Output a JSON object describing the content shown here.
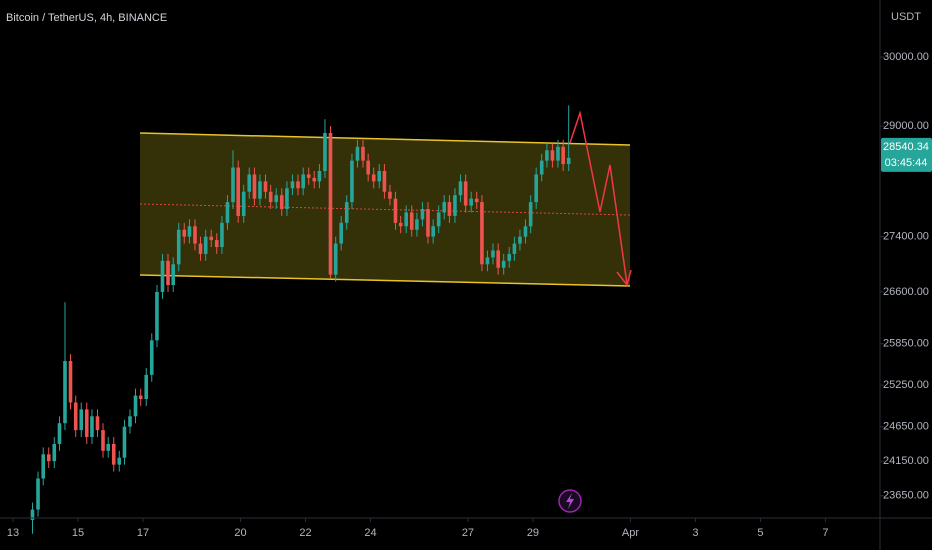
{
  "chart_data": {
    "type": "candlestick",
    "title": "Bitcoin / TetherUS, 4h, BINANCE",
    "y_axis_unit": "USDT",
    "up_color": "#26a69a",
    "down_color": "#ef5350",
    "grid": false,
    "xlim": [
      12.6,
      39.68
    ],
    "ylim": [
      23328,
      30825
    ],
    "xticks": [
      13,
      15,
      17,
      20,
      22,
      24,
      27,
      29,
      {
        "value": 32,
        "label": "Apr"
      },
      {
        "value": 34,
        "label": "3"
      },
      {
        "value": 36,
        "label": "5"
      },
      {
        "value": 38,
        "label": "7"
      }
    ],
    "yticks": [
      {
        "value": 30000,
        "label": "30000.00"
      },
      {
        "value": 29000,
        "label": "29000.00"
      },
      {
        "value": 27400,
        "label": "27400.00"
      },
      {
        "value": 26600,
        "label": "26600.00"
      },
      {
        "value": 25850,
        "label": "25850.00"
      },
      {
        "value": 25250,
        "label": "25250.00"
      },
      {
        "value": 24650,
        "label": "24650.00"
      },
      {
        "value": 24150,
        "label": "24150.00"
      },
      {
        "value": 23650,
        "label": "23650.00"
      }
    ],
    "last_price": 28540.34,
    "countdown": "03:45:44",
    "x": [
      13.6,
      13.77,
      13.93,
      14.1,
      14.27,
      14.43,
      14.6,
      14.77,
      14.93,
      15.1,
      15.27,
      15.43,
      15.6,
      15.77,
      15.93,
      16.1,
      16.27,
      16.43,
      16.6,
      16.77,
      16.93,
      17.1,
      17.27,
      17.43,
      17.6,
      17.77,
      17.93,
      18.1,
      18.27,
      18.43,
      18.6,
      18.77,
      18.93,
      19.1,
      19.27,
      19.43,
      19.6,
      19.77,
      19.93,
      20.1,
      20.27,
      20.43,
      20.6,
      20.77,
      20.93,
      21.1,
      21.27,
      21.43,
      21.6,
      21.77,
      21.93,
      22.1,
      22.27,
      22.43,
      22.6,
      22.77,
      22.93,
      23.1,
      23.27,
      23.43,
      23.6,
      23.77,
      23.93,
      24.1,
      24.27,
      24.43,
      24.6,
      24.77,
      24.93,
      25.1,
      25.27,
      25.43,
      25.6,
      25.77,
      25.93,
      26.1,
      26.27,
      26.43,
      26.6,
      26.77,
      26.93,
      27.1,
      27.27,
      27.43,
      27.6,
      27.77,
      27.93,
      28.1,
      28.27,
      28.43,
      28.6,
      28.77,
      28.93,
      29.1,
      29.27,
      29.43,
      29.6,
      29.77,
      29.93,
      30.1
    ],
    "open": [
      23300,
      23450,
      23900,
      24250,
      24150,
      24400,
      24700,
      25600,
      25000,
      24600,
      24900,
      24500,
      24800,
      24600,
      24300,
      24400,
      24100,
      24200,
      24650,
      24800,
      25100,
      25050,
      25400,
      25900,
      26600,
      27050,
      26700,
      27000,
      27500,
      27400,
      27550,
      27300,
      27150,
      27400,
      27350,
      27250,
      27600,
      27900,
      28400,
      27700,
      28050,
      28300,
      27950,
      28200,
      28050,
      27900,
      28000,
      27800,
      28100,
      28200,
      28100,
      28300,
      28250,
      28200,
      28350,
      28900,
      26850,
      27300,
      27600,
      27900,
      28500,
      28700,
      28500,
      28300,
      28200,
      28350,
      28050,
      27950,
      27600,
      27550,
      27750,
      27500,
      27650,
      27800,
      27400,
      27550,
      27750,
      27900,
      27700,
      28000,
      28200,
      27850,
      27950,
      27900,
      27000,
      27100,
      27200,
      26950,
      27050,
      27150,
      27300,
      27400,
      27550,
      27900,
      28300,
      28500,
      28650,
      28500,
      28700,
      28450
    ],
    "high": [
      23550,
      24000,
      24350,
      24350,
      24500,
      24800,
      26450,
      25700,
      25100,
      25000,
      25000,
      24900,
      24900,
      24700,
      24500,
      24500,
      24300,
      24750,
      24900,
      25200,
      25200,
      25500,
      26000,
      26700,
      27150,
      27150,
      27100,
      27600,
      27600,
      27650,
      27650,
      27400,
      27500,
      27500,
      27450,
      27700,
      28000,
      28650,
      28500,
      28150,
      28400,
      28400,
      28300,
      28300,
      28150,
      28100,
      28100,
      28200,
      28300,
      28300,
      28400,
      28400,
      28350,
      28450,
      29100,
      29000,
      27400,
      27700,
      28000,
      28600,
      28800,
      28800,
      28600,
      28400,
      28450,
      28450,
      28150,
      28050,
      27700,
      27850,
      27850,
      27750,
      27900,
      27900,
      27650,
      27850,
      28000,
      28000,
      28100,
      28300,
      28300,
      28050,
      28050,
      28000,
      27200,
      27300,
      27300,
      27150,
      27250,
      27400,
      27500,
      27650,
      28000,
      28400,
      28600,
      28750,
      28750,
      28800,
      28800,
      29300
    ],
    "low": [
      23100,
      23350,
      23800,
      24050,
      24050,
      24300,
      24600,
      24900,
      24500,
      24500,
      24400,
      24400,
      24500,
      24200,
      24200,
      24000,
      24000,
      24100,
      24550,
      24700,
      24950,
      24950,
      25300,
      25800,
      26500,
      26600,
      26600,
      26900,
      27300,
      27300,
      27200,
      27050,
      27050,
      27250,
      27150,
      27150,
      27500,
      27800,
      27600,
      27600,
      27950,
      27850,
      27850,
      27950,
      27800,
      27800,
      27700,
      27700,
      28000,
      28000,
      28000,
      28150,
      28100,
      28100,
      28250,
      26800,
      26750,
      27200,
      27500,
      27800,
      28400,
      28400,
      28200,
      28100,
      28100,
      27950,
      27850,
      27500,
      27450,
      27450,
      27400,
      27400,
      27550,
      27300,
      27300,
      27450,
      27650,
      27600,
      27600,
      27900,
      27750,
      27750,
      27800,
      26900,
      26900,
      27000,
      26850,
      26850,
      26950,
      27050,
      27200,
      27300,
      27450,
      27800,
      28200,
      28400,
      28400,
      28400,
      28350,
      28350
    ],
    "close": [
      23450,
      23900,
      24250,
      24150,
      24400,
      24700,
      25600,
      25000,
      24600,
      24900,
      24500,
      24800,
      24600,
      24300,
      24400,
      24100,
      24200,
      24650,
      24800,
      25100,
      25050,
      25400,
      25900,
      26600,
      27050,
      26700,
      27000,
      27500,
      27400,
      27550,
      27300,
      27150,
      27400,
      27350,
      27250,
      27600,
      27900,
      28400,
      27700,
      28050,
      28300,
      27950,
      28200,
      28050,
      27900,
      28000,
      27800,
      28100,
      28200,
      28100,
      28300,
      28250,
      28200,
      28350,
      28900,
      26850,
      27300,
      27600,
      27900,
      28500,
      28700,
      28500,
      28300,
      28200,
      28350,
      28050,
      27950,
      27600,
      27550,
      27750,
      27500,
      27650,
      27800,
      27400,
      27550,
      27750,
      27900,
      27700,
      28000,
      28200,
      27850,
      27950,
      27900,
      27000,
      27100,
      27200,
      26950,
      27050,
      27150,
      27300,
      27400,
      27550,
      27900,
      28300,
      28500,
      28650,
      28500,
      28700,
      28450,
      28540.34
    ]
  }
}
